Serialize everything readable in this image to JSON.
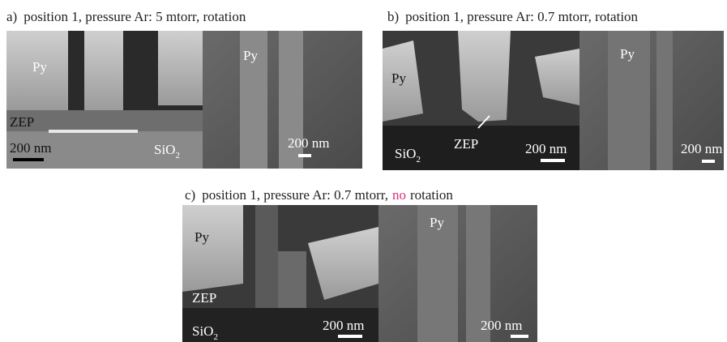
{
  "panels": [
    {
      "label": "a)",
      "caption": "position 1, pressure Ar: 5 mtorr, rotation",
      "cross_section": {
        "py": "Py",
        "zep": "ZEP",
        "scale": "200 nm",
        "sio2": {
          "text": "SiO",
          "sub": "2"
        }
      },
      "top_view": {
        "py": "Py",
        "scale": "200 nm"
      }
    },
    {
      "label": "b)",
      "caption": "position 1, pressure Ar: 0.7 mtorr, rotation",
      "cross_section": {
        "py": "Py",
        "zep": "ZEP",
        "scale": "200 nm",
        "sio2": {
          "text": "SiO",
          "sub": "2"
        }
      },
      "top_view": {
        "py": "Py",
        "scale": "200 nm"
      }
    },
    {
      "label": "c)",
      "caption": "position 1, pressure Ar: 0.7 mtorr,",
      "highlight": "no",
      "caption_end": "rotation",
      "cross_section": {
        "py": "Py",
        "zep": "ZEP",
        "scale": "200 nm",
        "sio2": {
          "text": "SiO",
          "sub": "2"
        }
      },
      "top_view": {
        "py": "Py",
        "scale": "200 nm"
      }
    }
  ]
}
